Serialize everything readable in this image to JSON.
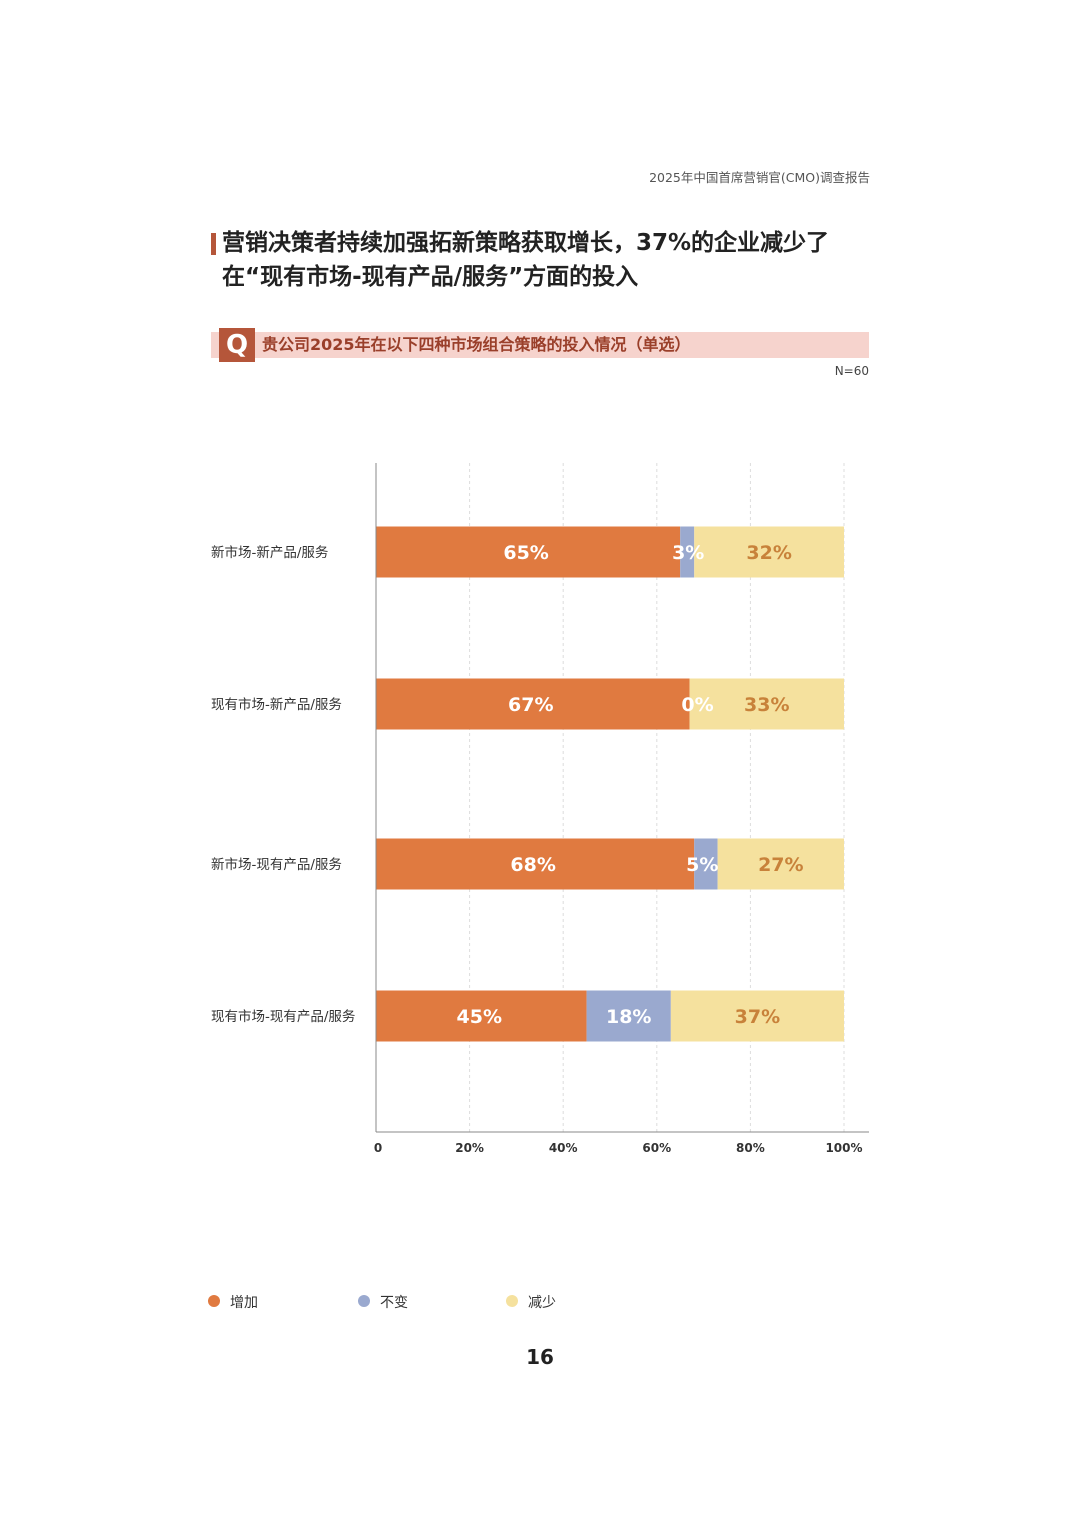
{
  "report": {
    "header_title": "2025年中国首席营销官(CMO)调查报告",
    "headline": "营销决策者持续加强拓新策略获取增长，37%的企业减少了在“现有市场-现有产品/服务”方面的投入",
    "question_badge": "Q",
    "question": "贵公司2025年在以下四种市场组合策略的投入情况（单选）",
    "sample_size": "N=60",
    "page_number": "16"
  },
  "colors": {
    "accent": "#b5563a",
    "question_band": "#f6d3cd",
    "increase": "#e07a40",
    "unchanged": "#9aa9cf",
    "decrease": "#f5e19e",
    "decrease_label": "#c8823a"
  },
  "chart_data": {
    "type": "bar",
    "orientation": "horizontal",
    "stacked": true,
    "categories": [
      "新市场-新产品/服务",
      "现有市场-新产品/服务",
      "新市场-现有产品/服务",
      "现有市场-现有产品/服务"
    ],
    "series": [
      {
        "name": "增加",
        "values": [
          65,
          67,
          68,
          45
        ]
      },
      {
        "name": "不变",
        "values": [
          3,
          0,
          5,
          18
        ]
      },
      {
        "name": "减少",
        "values": [
          32,
          33,
          27,
          37
        ]
      }
    ],
    "data_labels": [
      [
        "65%",
        "67%",
        "68%",
        "45%"
      ],
      [
        "3%",
        "0%",
        "5%",
        "18%"
      ],
      [
        "32%",
        "33%",
        "27%",
        "37%"
      ]
    ],
    "x_ticks": [
      0,
      20,
      40,
      60,
      80,
      100
    ],
    "x_tick_labels": [
      "0",
      "20%",
      "40%",
      "60%",
      "80%",
      "100%"
    ],
    "xlim": [
      0,
      100
    ],
    "grid": "vertical dashed",
    "legend_position": "bottom-left"
  }
}
